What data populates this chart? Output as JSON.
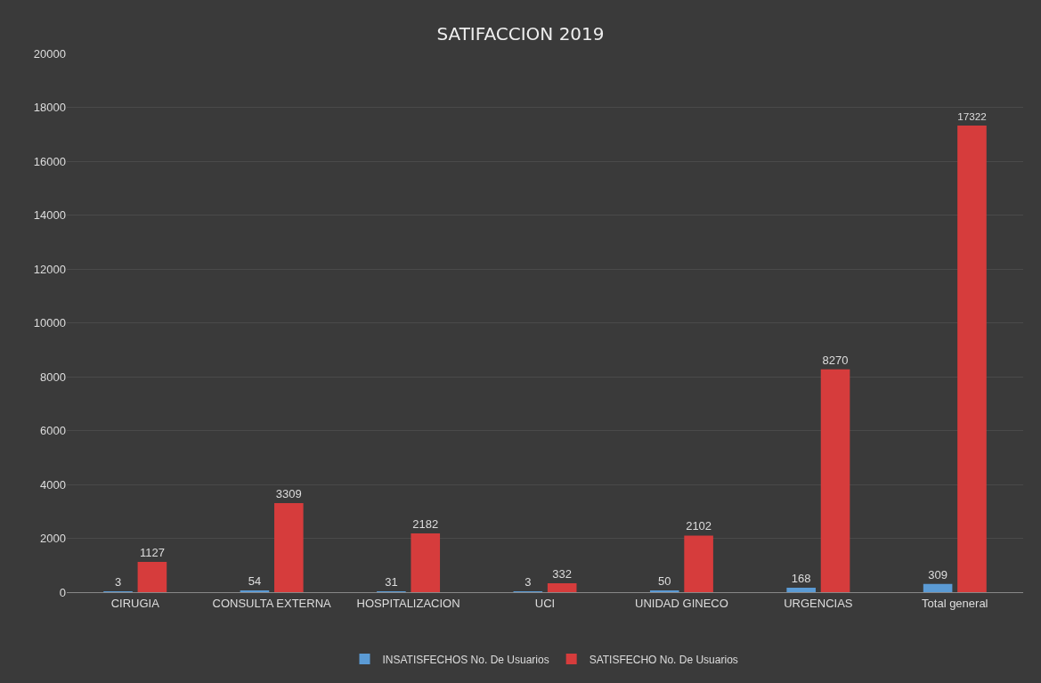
{
  "chart_data": {
    "type": "bar",
    "title": "SATIFACCION 2019",
    "categories": [
      "CIRUGIA",
      "CONSULTA EXTERNA",
      "HOSPITALIZACION",
      "UCI",
      "UNIDAD GINECO",
      "URGENCIAS",
      "Total general"
    ],
    "series": [
      {
        "name": "INSATISFECHOS No. De Usuarios",
        "color": "#5b9bd5",
        "values": [
          3,
          54,
          31,
          3,
          50,
          168,
          309
        ]
      },
      {
        "name": "SATISFECHO No. De Usuarios",
        "color": "#d63c3c",
        "values": [
          1127,
          3309,
          2182,
          332,
          2102,
          8270,
          17322
        ]
      }
    ],
    "ylim": [
      0,
      20000
    ],
    "yticks": [
      0,
      2000,
      4000,
      6000,
      8000,
      10000,
      12000,
      14000,
      16000,
      18000,
      20000
    ],
    "grid": "y",
    "legend": "bottom",
    "data_labels": true
  }
}
